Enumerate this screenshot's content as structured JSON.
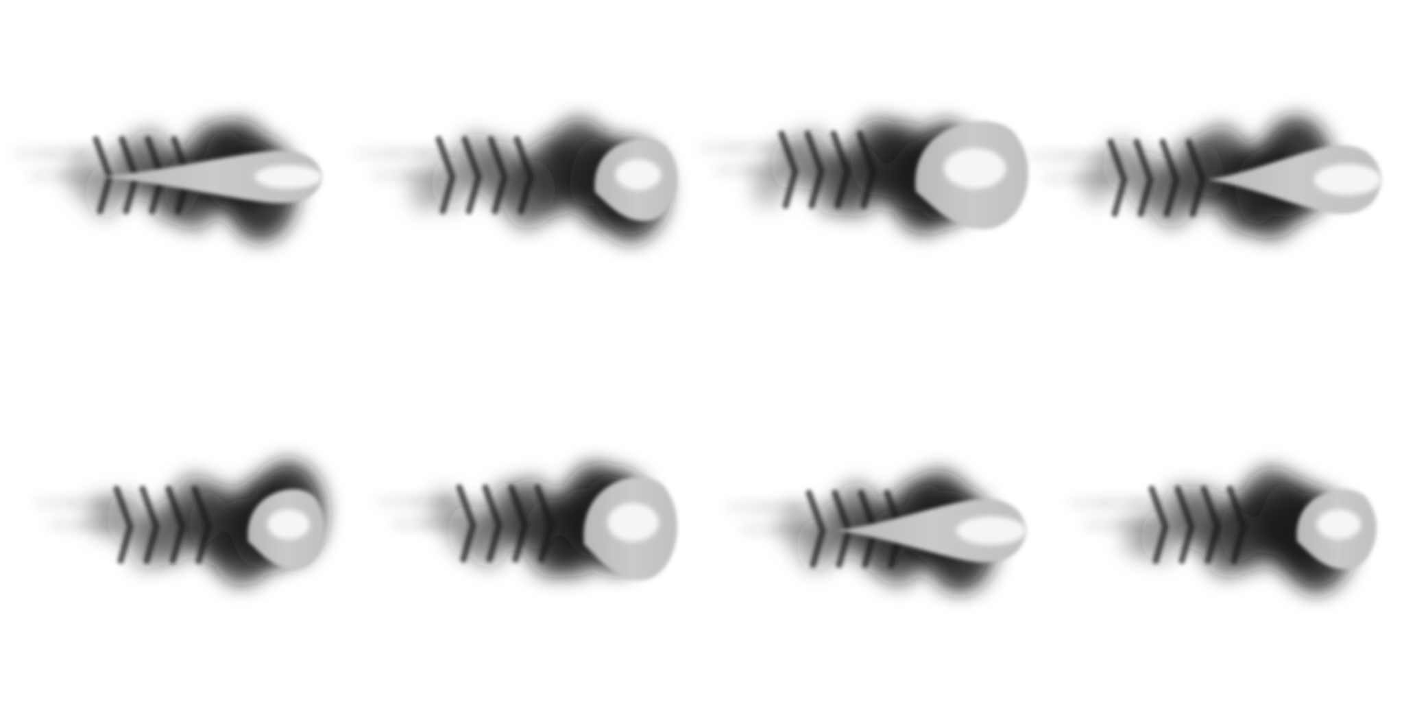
{
  "sprite_sheet": {
    "background": "#ffffff",
    "smoke_color": "#141414",
    "shell_color": "#c4c4c4",
    "core_color": "#f5f5f5",
    "frame_count": 8,
    "rows": 2,
    "columns": 4,
    "frames": [
      {
        "row": 1,
        "col": 1,
        "shape": "teardrop"
      },
      {
        "row": 1,
        "col": 2,
        "shape": "round"
      },
      {
        "row": 1,
        "col": 3,
        "shape": "round"
      },
      {
        "row": 1,
        "col": 4,
        "shape": "teardrop"
      },
      {
        "row": 2,
        "col": 1,
        "shape": "round"
      },
      {
        "row": 2,
        "col": 2,
        "shape": "round"
      },
      {
        "row": 2,
        "col": 3,
        "shape": "teardrop"
      },
      {
        "row": 2,
        "col": 4,
        "shape": "round"
      }
    ]
  }
}
